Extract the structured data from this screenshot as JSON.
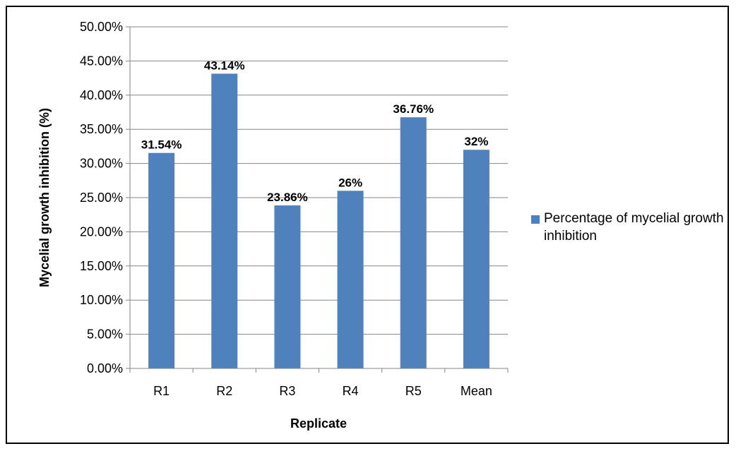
{
  "chart_data": {
    "type": "bar",
    "categories": [
      "R1",
      "R2",
      "R3",
      "R4",
      "R5",
      "Mean"
    ],
    "series": [
      {
        "name": "Percentage of mycelial growth inhibition",
        "values": [
          31.54,
          43.14,
          23.86,
          26,
          36.76,
          32
        ],
        "data_labels": [
          "31.54%",
          "43.14%",
          "23.86%",
          "26%",
          "36.76%",
          "32%"
        ],
        "color": "#4F81BD"
      }
    ],
    "xlabel": "Replicate",
    "ylabel": "Mycelial growth inhibition (%)",
    "ylim": [
      0,
      50
    ],
    "y_step": 5,
    "y_tick_labels": [
      "0.00%",
      "5.00%",
      "10.00%",
      "15.00%",
      "20.00%",
      "25.00%",
      "30.00%",
      "35.00%",
      "40.00%",
      "45.00%",
      "50.00%"
    ],
    "grid": true,
    "legend_position": "right"
  }
}
